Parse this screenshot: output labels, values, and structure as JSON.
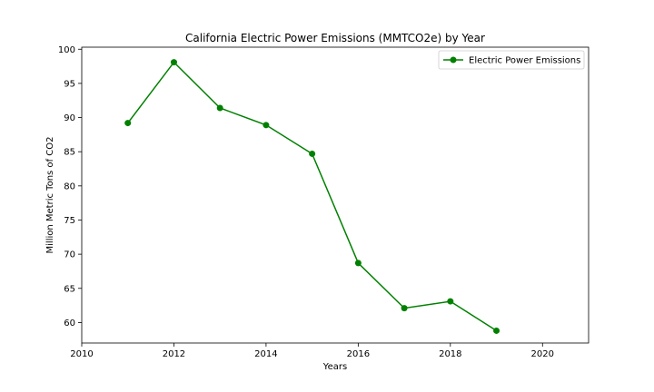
{
  "chart_data": {
    "type": "line",
    "title": "California Electric Power Emissions (MMTCO2e) by Year",
    "xlabel": "Years",
    "ylabel": "Million Metric Tons of CO2",
    "xlim": [
      2010,
      2021
    ],
    "ylim": [
      57,
      100.3
    ],
    "xticks": [
      2010,
      2012,
      2014,
      2016,
      2018,
      2020
    ],
    "yticks": [
      60,
      65,
      70,
      75,
      80,
      85,
      90,
      95,
      100
    ],
    "grid": false,
    "legend_position": "top-right",
    "series": [
      {
        "name": "Electric Power Emissions",
        "color": "#008000",
        "marker": "circle",
        "x": [
          2011,
          2012,
          2013,
          2014,
          2015,
          2016,
          2017,
          2018,
          2019
        ],
        "y": [
          89.2,
          98.1,
          91.4,
          88.9,
          84.7,
          68.7,
          62.1,
          63.1,
          58.8
        ]
      }
    ]
  }
}
